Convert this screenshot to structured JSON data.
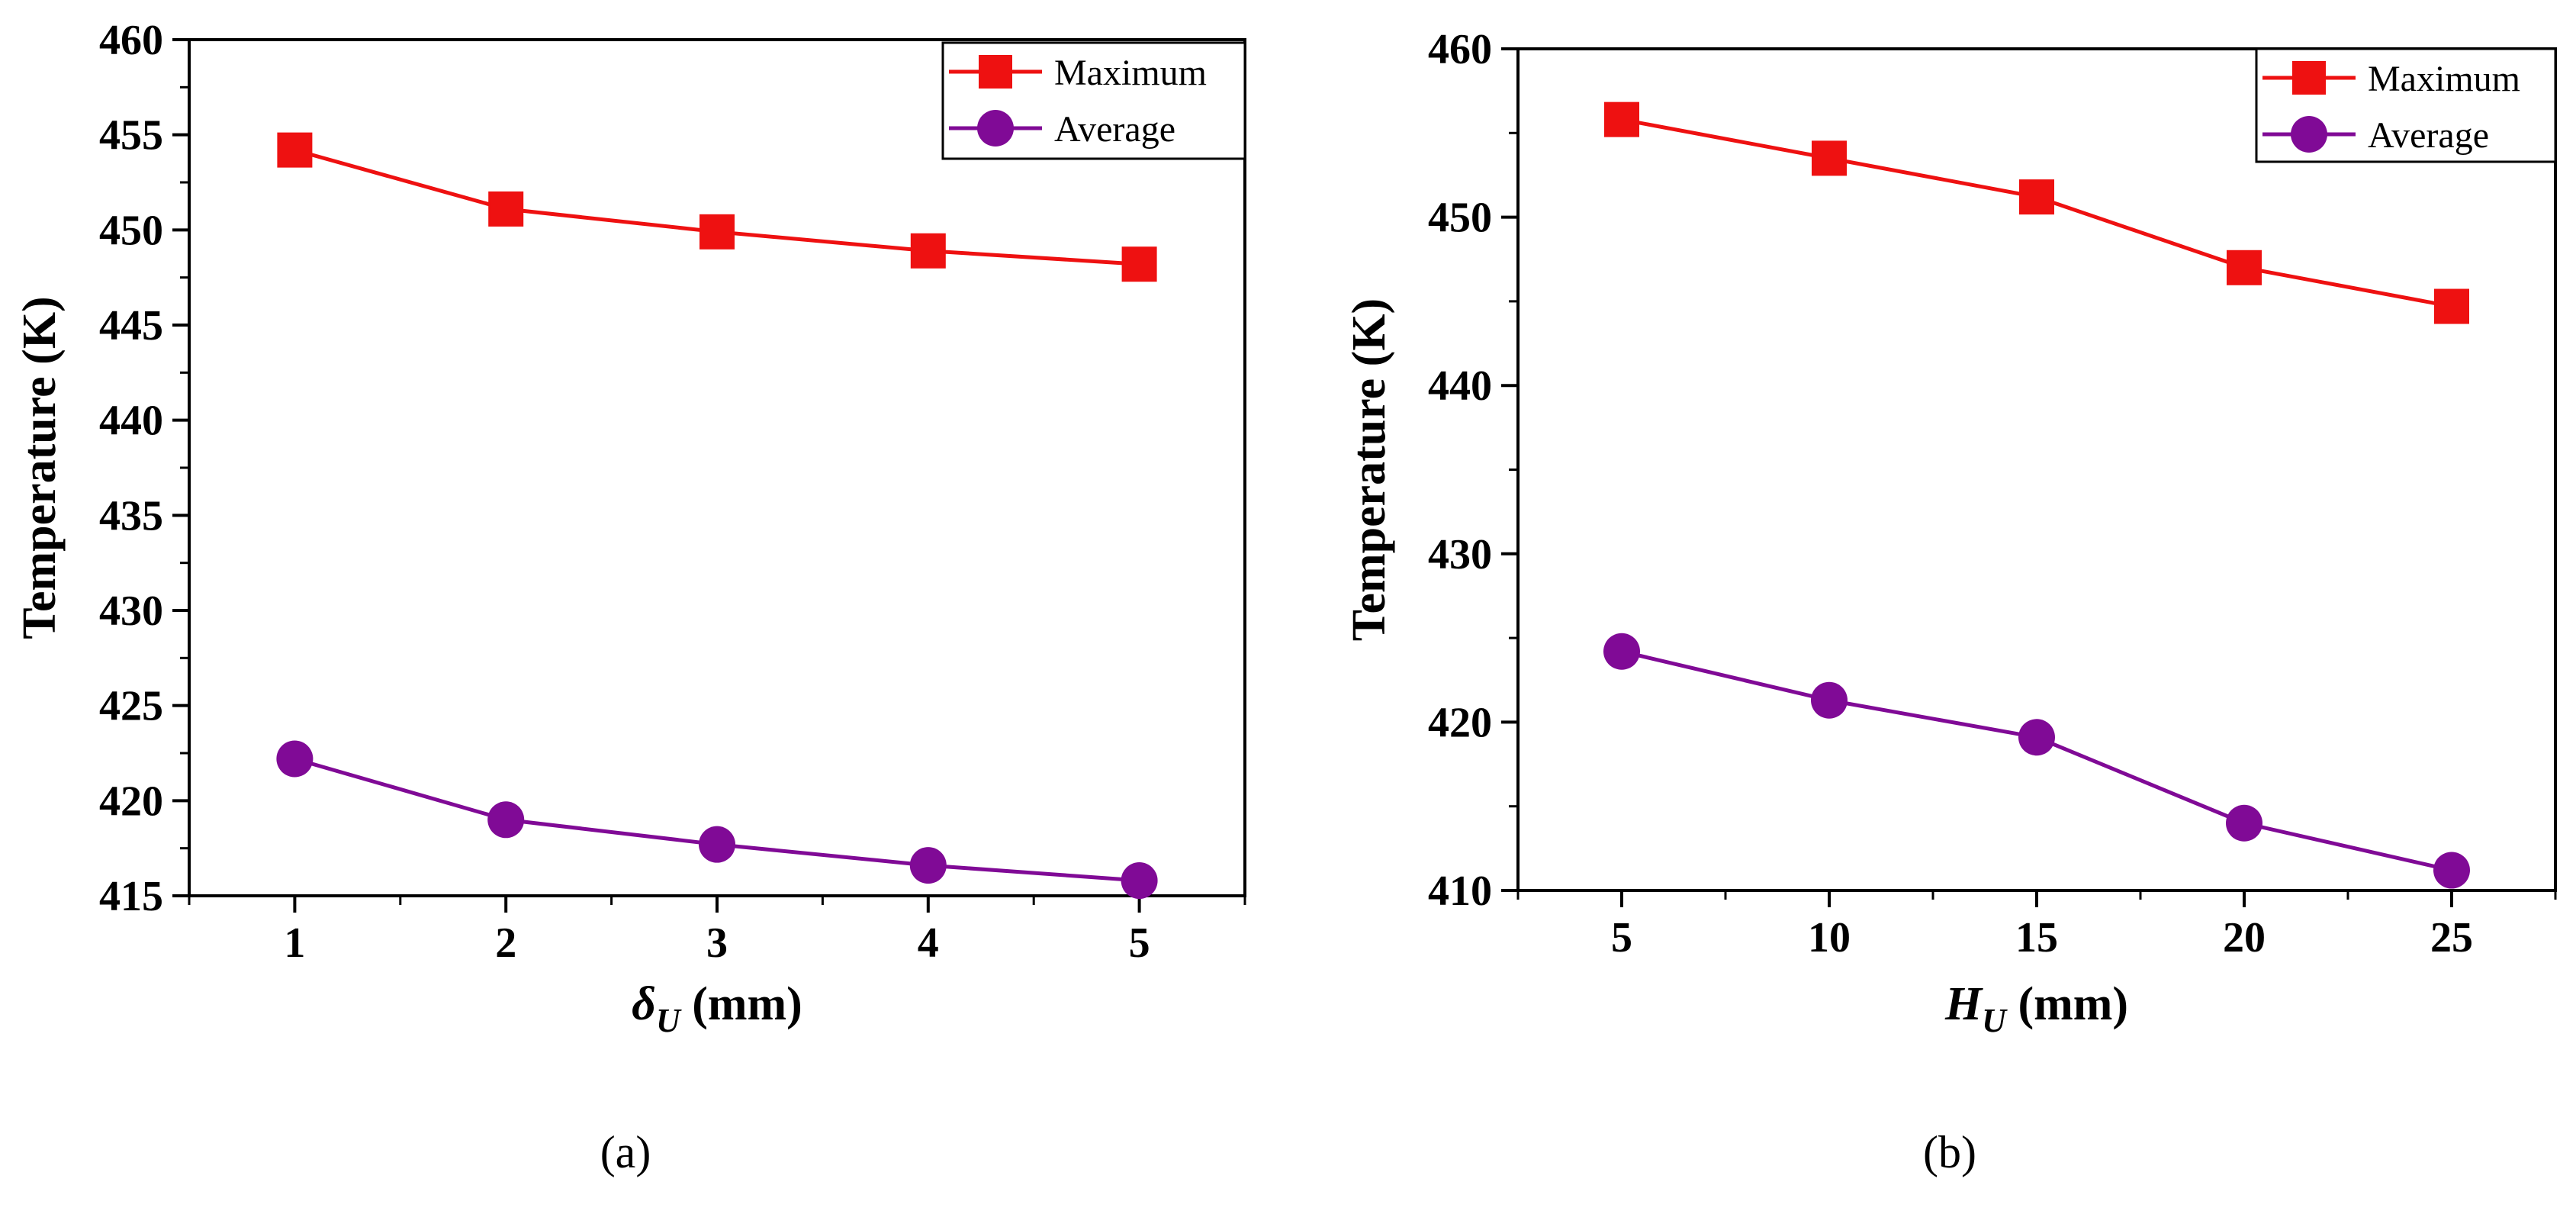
{
  "chart_data": [
    {
      "type": "line",
      "panel": "a",
      "caption": "(a)",
      "x": [
        1,
        2,
        3,
        4,
        5
      ],
      "xticks": [
        "1",
        "2",
        "3",
        "4",
        "5"
      ],
      "xlim": [
        0.5,
        5.5
      ],
      "ylim": [
        415,
        460
      ],
      "yticks": [
        "415",
        "420",
        "425",
        "430",
        "435",
        "440",
        "445",
        "450",
        "455",
        "460"
      ],
      "ylabel": "Temperature (K)",
      "xlabel_symbol": "δ",
      "xlabel_subscript": "U",
      "xlabel_unit": " (mm)",
      "series": [
        {
          "name": "Maximum",
          "color": "#ee1111",
          "marker": "square",
          "values": [
            454.2,
            451.1,
            449.9,
            448.9,
            448.2
          ]
        },
        {
          "name": "Average",
          "color": "#800a96",
          "marker": "circle",
          "values": [
            422.2,
            419.0,
            417.7,
            416.6,
            415.8
          ]
        }
      ]
    },
    {
      "type": "line",
      "panel": "b",
      "caption": "(b)",
      "x": [
        5,
        10,
        15,
        20,
        25
      ],
      "xticks": [
        "5",
        "10",
        "15",
        "20",
        "25"
      ],
      "xlim": [
        2.5,
        27.5
      ],
      "ylim": [
        410,
        460
      ],
      "yticks": [
        "410",
        "420",
        "430",
        "440",
        "450",
        "460"
      ],
      "ylabel": "Temperature (K)",
      "xlabel_symbol": "H",
      "xlabel_subscript": "U",
      "xlabel_unit": " (mm)",
      "series": [
        {
          "name": "Maximum",
          "color": "#ee1111",
          "marker": "square",
          "values": [
            455.8,
            453.5,
            451.2,
            447.0,
            444.7
          ]
        },
        {
          "name": "Average",
          "color": "#800a96",
          "marker": "circle",
          "values": [
            424.2,
            421.3,
            419.1,
            414.0,
            411.2
          ]
        }
      ]
    }
  ]
}
